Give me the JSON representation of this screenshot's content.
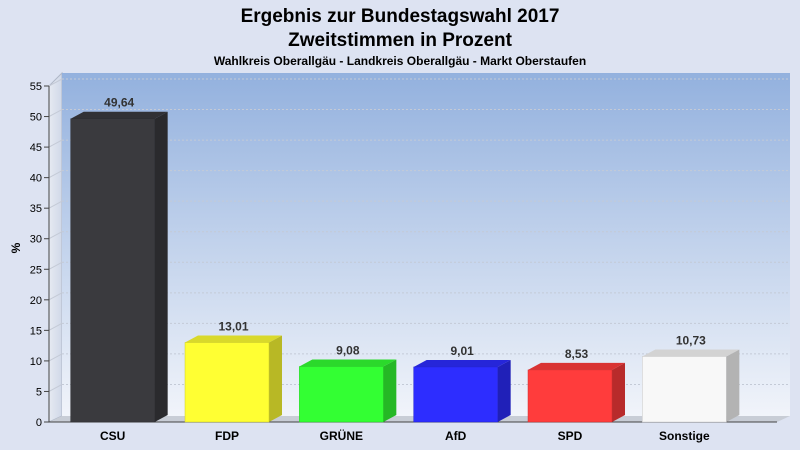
{
  "chart_data": {
    "type": "bar",
    "title": "Ergebnis zur Bundestagswahl 2017",
    "subtitle": "Zweitstimmen in Prozent",
    "caption": "Wahlkreis Oberallgäu - Landkreis Oberallgäu - Markt Oberstaufen",
    "ylabel": "%",
    "xlabel": "",
    "ylim": [
      0,
      55
    ],
    "yticks": [
      0,
      5,
      10,
      15,
      20,
      25,
      30,
      35,
      40,
      45,
      50,
      55
    ],
    "grid": true,
    "categories": [
      "CSU",
      "FDP",
      "GRÜNE",
      "AfD",
      "SPD",
      "Sonstige"
    ],
    "values": [
      49.64,
      13.01,
      9.08,
      9.01,
      8.53,
      10.73
    ],
    "value_labels": [
      "49,64",
      "13,01",
      "9,08",
      "9,01",
      "8,53",
      "10,73"
    ],
    "colors": [
      "#3a3a3e",
      "#ffff33",
      "#33ff33",
      "#2d2dff",
      "#ff3c3c",
      "#f8f8f8"
    ]
  }
}
